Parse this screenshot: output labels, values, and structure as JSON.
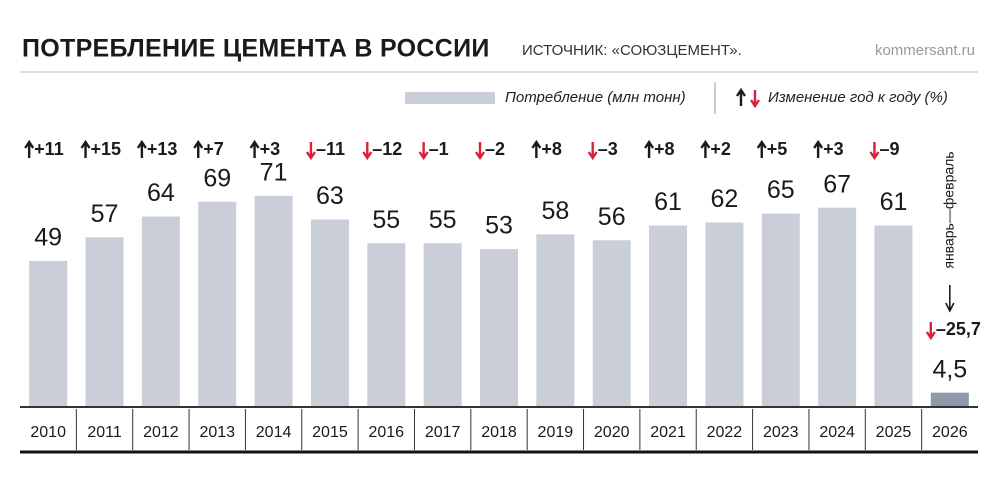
{
  "chart_data": {
    "type": "bar",
    "title": "ПОТРЕБЛЕНИЕ ЦЕМЕНТА В РОССИИ",
    "source": "ИСТОЧНИК: «СОЮЗЦЕМЕНТ».",
    "site": "kommersant.ru",
    "categories": [
      "2010",
      "2011",
      "2012",
      "2013",
      "2014",
      "2015",
      "2016",
      "2017",
      "2018",
      "2019",
      "2020",
      "2021",
      "2022",
      "2023",
      "2024",
      "2025",
      "2026"
    ],
    "series": [
      {
        "name": "Потребление (млн тонн)",
        "color": "#c9ced9",
        "colors": [
          "#c9ced9",
          "#c9ced9",
          "#c9ced9",
          "#c9ced9",
          "#c9ced9",
          "#c9ced9",
          "#c9ced9",
          "#c9ced9",
          "#c9ced9",
          "#c9ced9",
          "#c9ced9",
          "#c9ced9",
          "#c9ced9",
          "#c9ced9",
          "#c9ced9",
          "#c9ced9",
          "#8e99aa"
        ],
        "values": [
          49,
          57,
          64,
          69,
          71,
          63,
          55,
          55,
          53,
          58,
          56,
          61,
          62,
          65,
          67,
          61,
          4.5
        ],
        "value_labels": [
          "49",
          "57",
          "64",
          "69",
          "71",
          "63",
          "55",
          "55",
          "53",
          "58",
          "56",
          "61",
          "62",
          "65",
          "67",
          "61",
          "4,5"
        ]
      }
    ],
    "changes": {
      "name": "Изменение год к году (%)",
      "up_color": "#1a1a1a",
      "down_color": "#d9223a",
      "values": [
        11,
        15,
        13,
        7,
        3,
        -11,
        -12,
        -1,
        -2,
        8,
        -3,
        8,
        2,
        5,
        3,
        -9,
        -25.7
      ],
      "value_labels": [
        "+11",
        "+15",
        "+13",
        "+7",
        "+3",
        "–11",
        "–12",
        "–1",
        "–2",
        "+8",
        "–3",
        "+8",
        "+2",
        "+5",
        "+3",
        "–9",
        "–25,7"
      ]
    },
    "annotation": "январь—февраль"
  }
}
